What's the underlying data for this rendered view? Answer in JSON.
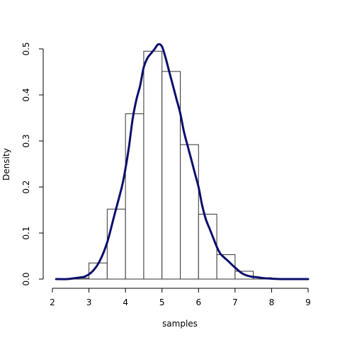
{
  "chart_data": {
    "type": "bar",
    "subtype": "histogram-with-density-curve",
    "title": "",
    "xlabel": "samples",
    "ylabel": "Density",
    "xlim": [
      2,
      9
    ],
    "ylim": [
      0,
      0.5
    ],
    "x_ticks": [
      "2",
      "3",
      "4",
      "5",
      "6",
      "7",
      "8",
      "9"
    ],
    "y_ticks": [
      "0.0",
      "0.1",
      "0.2",
      "0.3",
      "0.4",
      "0.5"
    ],
    "bins": [
      {
        "from": 2.5,
        "to": 3.0,
        "density": 0.002
      },
      {
        "from": 3.0,
        "to": 3.5,
        "density": 0.035
      },
      {
        "from": 3.5,
        "to": 4.0,
        "density": 0.152
      },
      {
        "from": 4.0,
        "to": 4.5,
        "density": 0.359
      },
      {
        "from": 4.5,
        "to": 5.0,
        "density": 0.495
      },
      {
        "from": 5.0,
        "to": 5.5,
        "density": 0.451
      },
      {
        "from": 5.5,
        "to": 6.0,
        "density": 0.292
      },
      {
        "from": 6.0,
        "to": 6.5,
        "density": 0.141
      },
      {
        "from": 6.5,
        "to": 7.0,
        "density": 0.053
      },
      {
        "from": 7.0,
        "to": 7.5,
        "density": 0.017
      },
      {
        "from": 7.5,
        "to": 8.0,
        "density": 0.003
      }
    ],
    "density_curve": {
      "x": [
        2.1,
        2.4,
        2.7,
        2.9,
        3.1,
        3.3,
        3.5,
        3.7,
        3.9,
        4.0,
        4.1,
        4.2,
        4.3,
        4.4,
        4.5,
        4.6,
        4.7,
        4.8,
        4.9,
        5.0,
        5.1,
        5.2,
        5.3,
        5.4,
        5.5,
        5.6,
        5.7,
        5.8,
        5.9,
        6.0,
        6.1,
        6.2,
        6.3,
        6.4,
        6.5,
        6.6,
        6.7,
        6.8,
        7.0,
        7.2,
        7.4,
        7.6,
        7.8,
        8.0,
        8.3,
        8.6,
        9.0
      ],
      "y": [
        0.0,
        0.0,
        0.003,
        0.006,
        0.017,
        0.04,
        0.08,
        0.14,
        0.2,
        0.24,
        0.29,
        0.35,
        0.39,
        0.42,
        0.46,
        0.48,
        0.49,
        0.5,
        0.51,
        0.505,
        0.48,
        0.45,
        0.42,
        0.39,
        0.36,
        0.32,
        0.29,
        0.26,
        0.23,
        0.2,
        0.16,
        0.13,
        0.11,
        0.09,
        0.07,
        0.055,
        0.047,
        0.04,
        0.025,
        0.012,
        0.006,
        0.004,
        0.002,
        0.001,
        0.0,
        0.0,
        0.0
      ]
    },
    "grid": false,
    "legend": "none",
    "colors": {
      "curve": "#0a0f6b",
      "bar_stroke": "#333333",
      "bar_fill": "#ffffff",
      "axis": "#000000"
    }
  }
}
